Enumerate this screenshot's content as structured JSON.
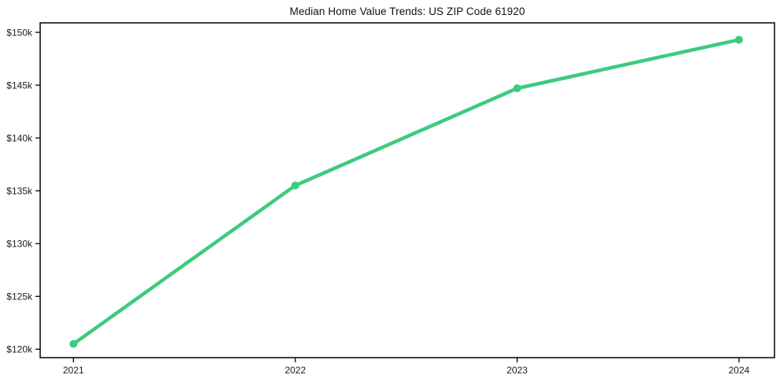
{
  "chart_data": {
    "type": "line",
    "title": "Median Home Value Trends: US ZIP Code 61920",
    "xlabel": "",
    "ylabel": "",
    "categories": [
      "2021",
      "2022",
      "2023",
      "2024"
    ],
    "x": [
      2021,
      2022,
      2023,
      2024
    ],
    "values": [
      120500,
      135500,
      144700,
      149300
    ],
    "value_labels": [
      "$120.5k",
      "$135.5k",
      "$144.7k",
      "$149.3k"
    ],
    "y_ticks": [
      120000,
      125000,
      130000,
      135000,
      140000,
      145000,
      150000
    ],
    "y_tick_labels": [
      "$120k",
      "$125k",
      "$130k",
      "$135k",
      "$140k",
      "$145k",
      "$150k"
    ],
    "xlim": [
      2020.85,
      2024.16
    ],
    "ylim": [
      119200,
      150900
    ],
    "grid": false,
    "legend": false,
    "line_color": "#3dcb7d",
    "line_width": 4.5,
    "marker": "circle",
    "marker_radius": 5,
    "frame_color": "#000000",
    "tick_color": "#000000",
    "text_color": "#1c1c1c",
    "background": "#ffffff"
  }
}
